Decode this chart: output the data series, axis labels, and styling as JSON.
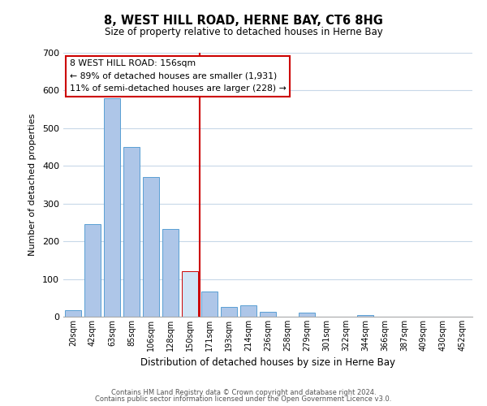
{
  "title": "8, WEST HILL ROAD, HERNE BAY, CT6 8HG",
  "subtitle": "Size of property relative to detached houses in Herne Bay",
  "xlabel": "Distribution of detached houses by size in Herne Bay",
  "ylabel": "Number of detached properties",
  "bar_values": [
    18,
    245,
    580,
    450,
    370,
    232,
    120,
    67,
    25,
    31,
    14,
    0,
    10,
    0,
    0,
    5,
    0,
    0,
    0,
    0,
    0
  ],
  "bin_labels": [
    "20sqm",
    "42sqm",
    "63sqm",
    "85sqm",
    "106sqm",
    "128sqm",
    "150sqm",
    "171sqm",
    "193sqm",
    "214sqm",
    "236sqm",
    "258sqm",
    "279sqm",
    "301sqm",
    "322sqm",
    "344sqm",
    "366sqm",
    "387sqm",
    "409sqm",
    "430sqm",
    "452sqm"
  ],
  "bar_color": "#aec6e8",
  "bar_edge_color": "#5a9fd4",
  "highlight_bar_color": "#d0e4f5",
  "highlight_bar_edge_color": "#cc0000",
  "vline_x_index": 6,
  "vline_color": "#cc0000",
  "ylim": [
    0,
    700
  ],
  "yticks": [
    0,
    100,
    200,
    300,
    400,
    500,
    600,
    700
  ],
  "annotation_title": "8 WEST HILL ROAD: 156sqm",
  "annotation_line1": "← 89% of detached houses are smaller (1,931)",
  "annotation_line2": "11% of semi-detached houses are larger (228) →",
  "footer_line1": "Contains HM Land Registry data © Crown copyright and database right 2024.",
  "footer_line2": "Contains public sector information licensed under the Open Government Licence v3.0.",
  "background_color": "#ffffff",
  "grid_color": "#c8d8e8"
}
